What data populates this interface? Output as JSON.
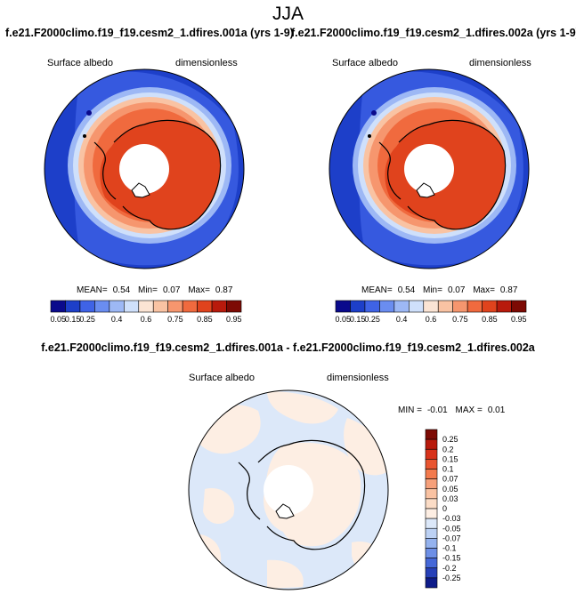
{
  "season": "JJA",
  "panels": [
    {
      "title": "f.e21.F2000climo.f19_f19.cesm2_1.dfires.001a (yrs 1-9)",
      "variable": "Surface albedo",
      "units": "dimensionless",
      "stats": {
        "mean_label": "MEAN=",
        "mean": "0.54",
        "min_label": "Min=",
        "min": "0.07",
        "max_label": "Max=",
        "max": "0.87"
      }
    },
    {
      "title": "f.e21.F2000climo.f19_f19.cesm2_1.dfires.002a (yrs 1-9)",
      "variable": "Surface albedo",
      "units": "dimensionless",
      "stats": {
        "mean_label": "MEAN=",
        "mean": "0.54",
        "min_label": "Min=",
        "min": "0.07",
        "max_label": "Max=",
        "max": "0.87"
      }
    }
  ],
  "colorbar": {
    "colors": [
      "#0a0a8c",
      "#1d3fc9",
      "#3f63e6",
      "#6a8df0",
      "#9db8f5",
      "#cfe0fb",
      "#fbe4d4",
      "#f9c3a3",
      "#f6966e",
      "#f06a3e",
      "#e0431d",
      "#b81a0c",
      "#7d0a04"
    ],
    "labels": [
      "0.05",
      "0.15",
      "0.25",
      "0.4",
      "0.6",
      "0.75",
      "0.85",
      "0.95"
    ]
  },
  "difference": {
    "title": "f.e21.F2000climo.f19_f19.cesm2_1.dfires.001a - f.e21.F2000climo.f19_f19.cesm2_1.dfires.002a",
    "variable": "Surface albedo",
    "units": "dimensionless",
    "stats": {
      "min_label": "MIN =",
      "min": "-0.01",
      "max_label": "MAX =",
      "max": "0.01"
    },
    "colorbar": {
      "labels": [
        "0.25",
        "0.2",
        "0.15",
        "0.1",
        "0.07",
        "0.05",
        "0.03",
        "0",
        "-0.03",
        "-0.05",
        "-0.07",
        "-0.1",
        "-0.15",
        "-0.2",
        "-0.25"
      ],
      "colors": [
        "#7d0a04",
        "#b81a0c",
        "#d8321a",
        "#e95530",
        "#f37a4d",
        "#f6a07a",
        "#f9c2a2",
        "#fbdcc6",
        "#fdeee3",
        "#dce8f9",
        "#bcd1f4",
        "#94b2ee",
        "#6d8fe6",
        "#4568d8",
        "#2640b8",
        "#0e1c8a"
      ]
    }
  }
}
